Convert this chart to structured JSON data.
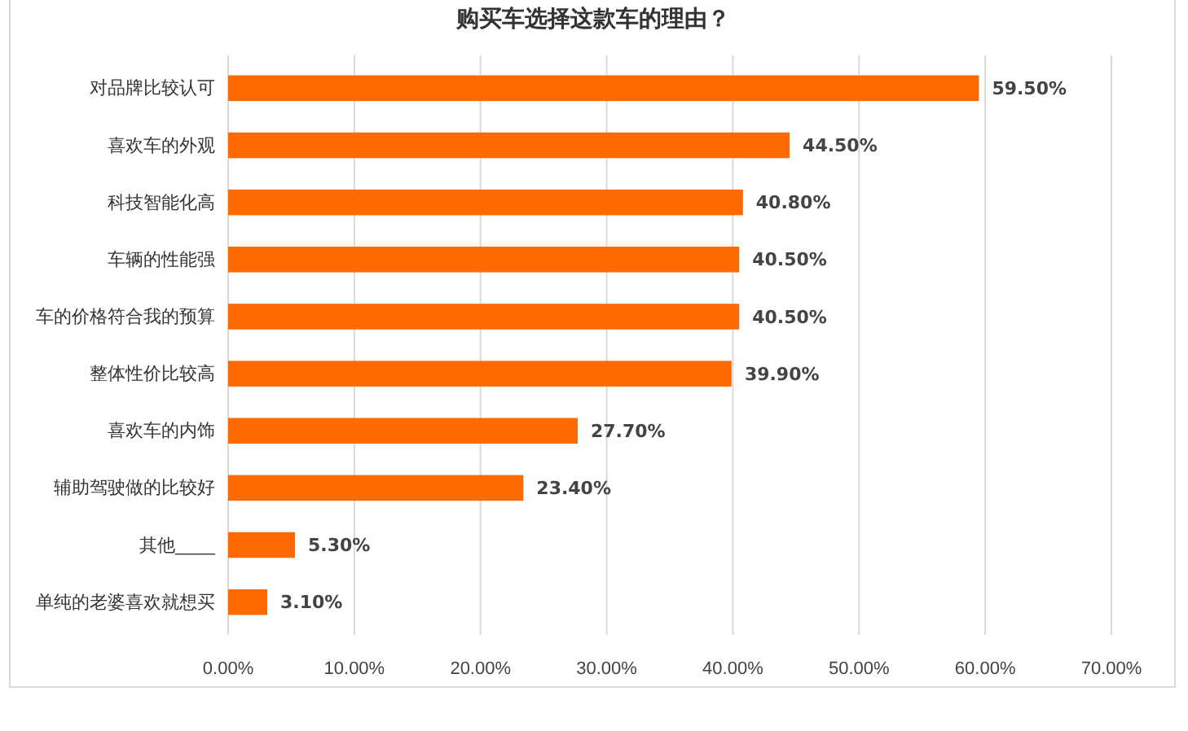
{
  "chart_data": {
    "type": "bar",
    "orientation": "horizontal",
    "title": "购买车选择这款车的理由？",
    "categories": [
      "对品牌比较认可",
      "喜欢车的外观",
      "科技智能化高",
      "车辆的性能强",
      "车的价格符合我的预算",
      "整体性价比较高",
      "喜欢车的内饰",
      "辅助驾驶做的比较好",
      "其他____",
      "单纯的老婆喜欢就想买"
    ],
    "values": [
      59.5,
      44.5,
      40.8,
      40.5,
      40.5,
      39.9,
      27.7,
      23.4,
      5.3,
      3.1
    ],
    "value_labels": [
      "59.50%",
      "44.50%",
      "40.80%",
      "40.50%",
      "40.50%",
      "39.90%",
      "27.70%",
      "23.40%",
      "5.30%",
      "3.10%"
    ],
    "color": "#ff6a00",
    "xlim": [
      0,
      70
    ],
    "xticks": [
      {
        "value": 0,
        "label": "0.00%"
      },
      {
        "value": 10,
        "label": "10.00%"
      },
      {
        "value": 20,
        "label": "20.00%"
      },
      {
        "value": 30,
        "label": "30.00%"
      },
      {
        "value": 40,
        "label": "40.00%"
      },
      {
        "value": 50,
        "label": "50.00%"
      },
      {
        "value": 60,
        "label": "60.00%"
      },
      {
        "value": 70,
        "label": "70.00%"
      }
    ],
    "grid": "x"
  }
}
